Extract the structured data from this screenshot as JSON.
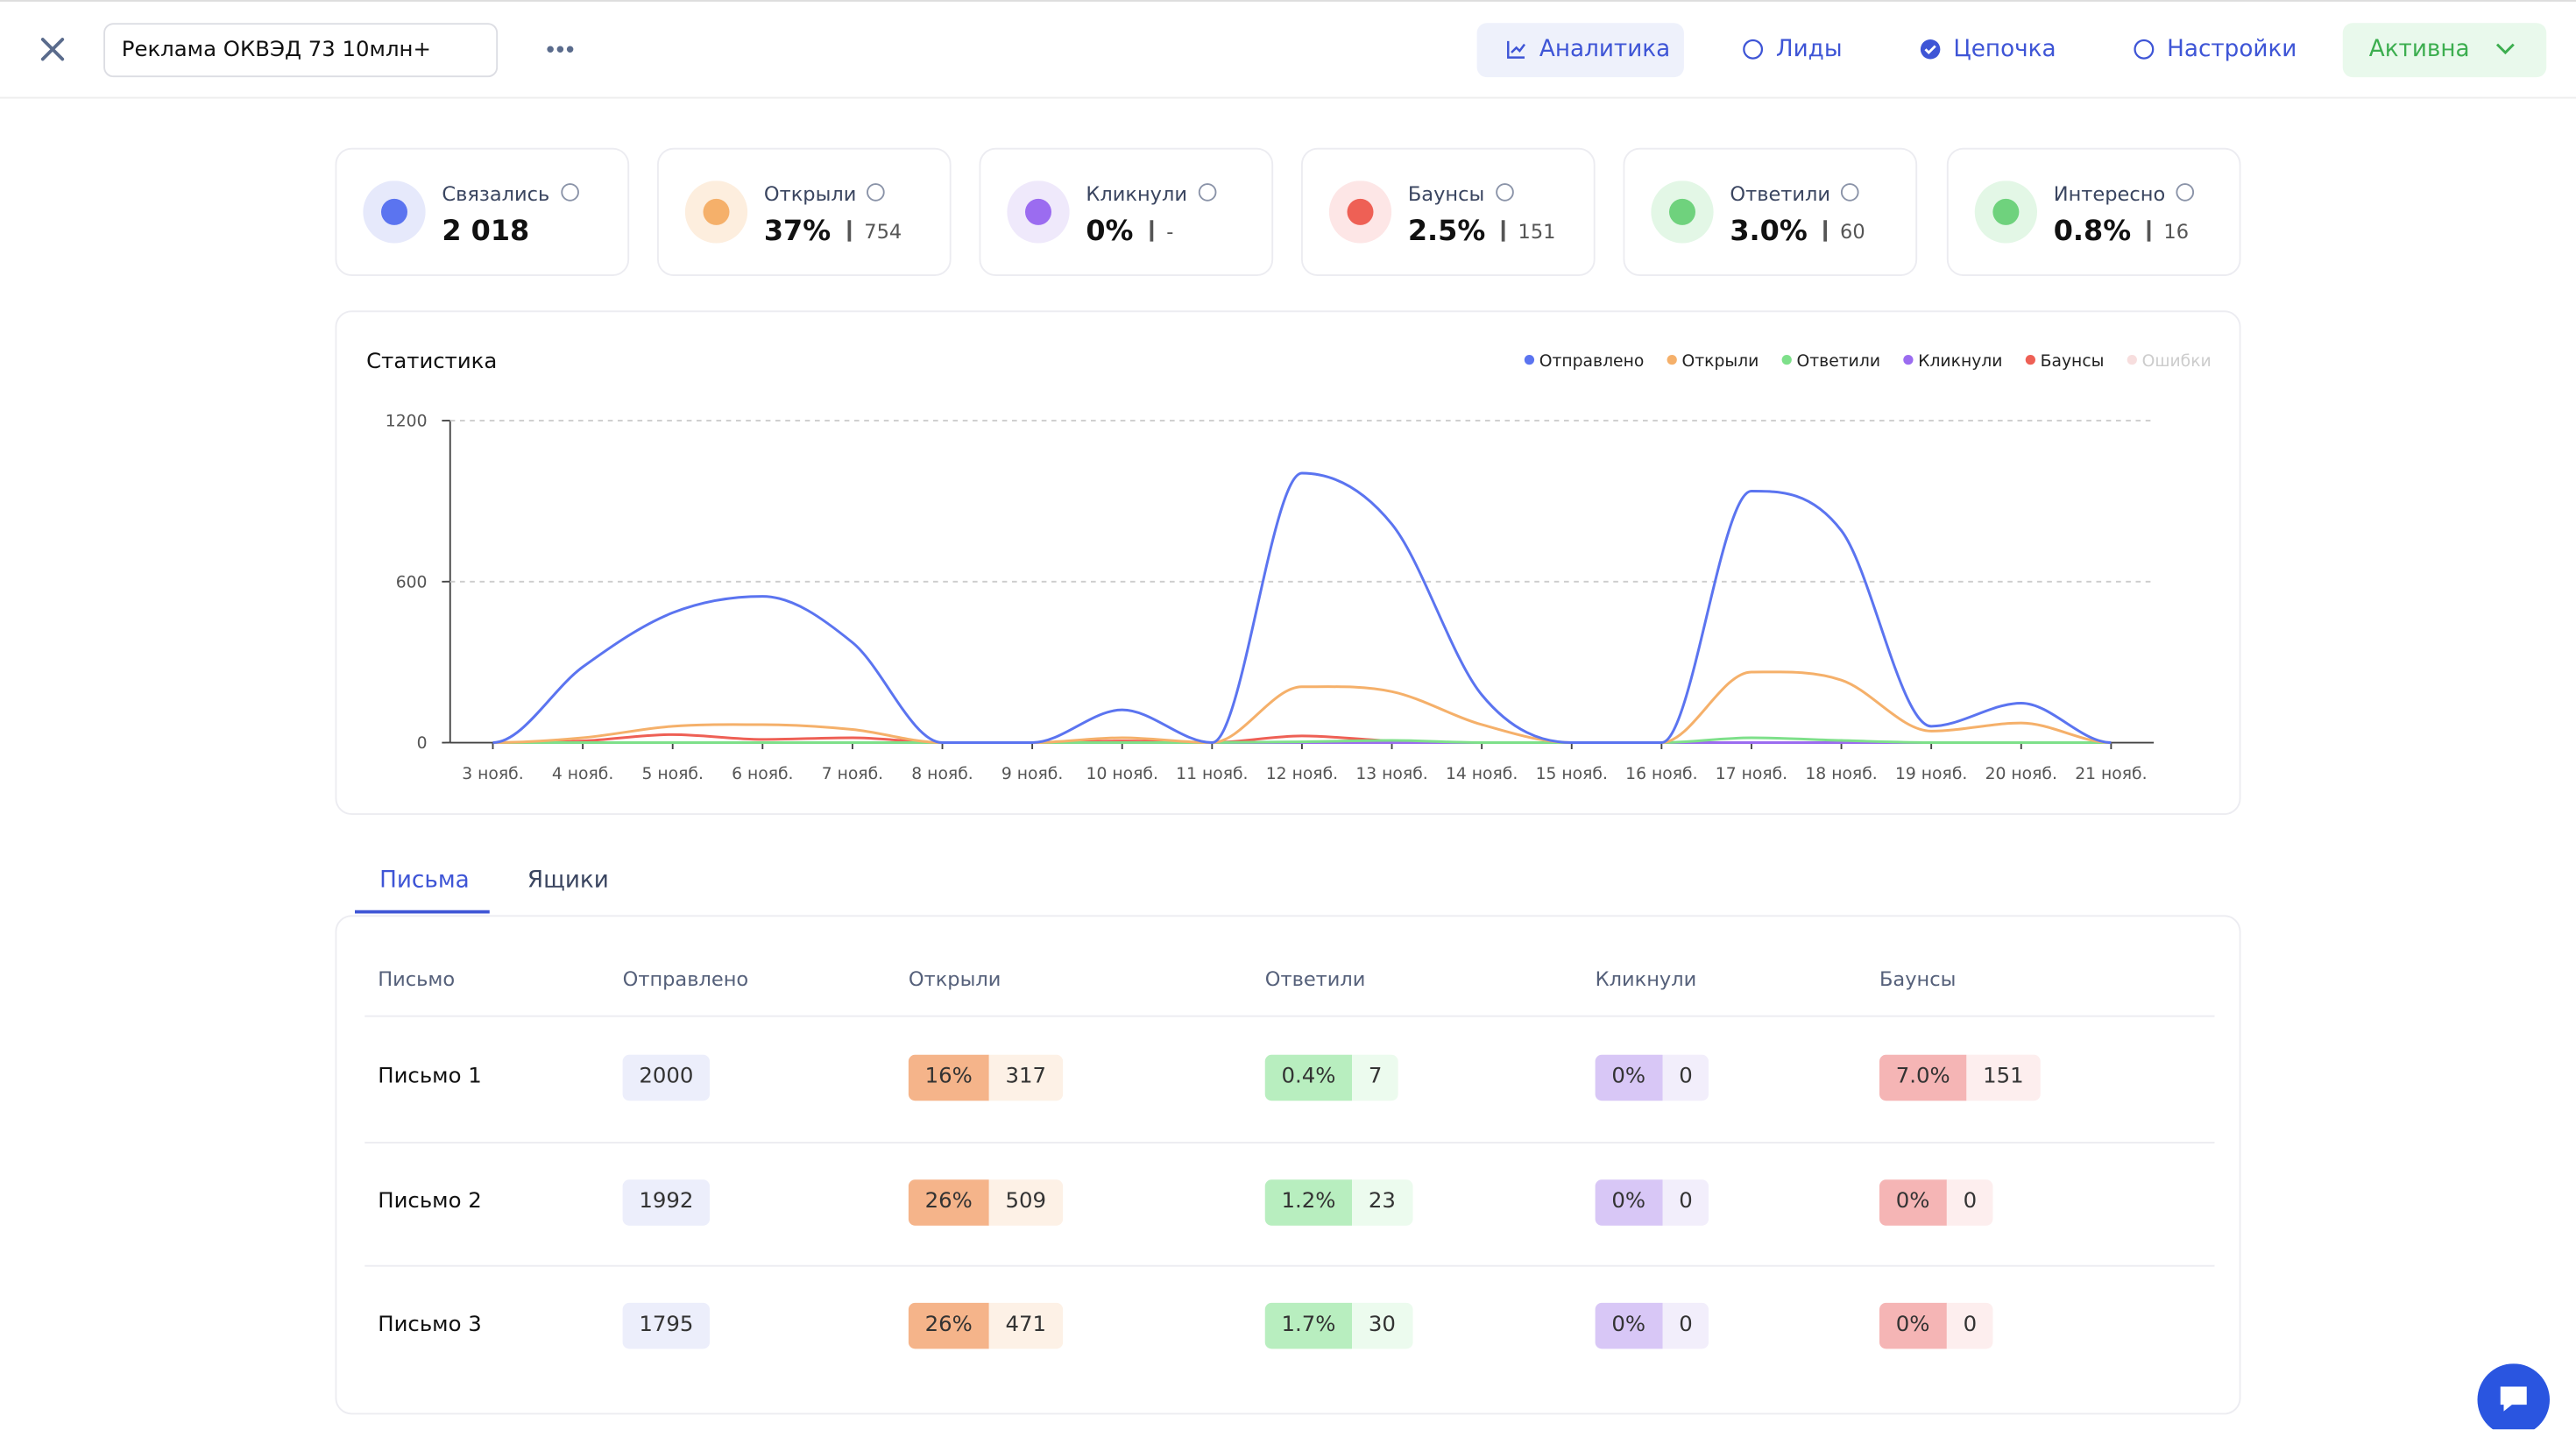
{
  "header": {
    "campaign_name": "Реклама ОКВЭД 73 10млн+",
    "nav": [
      "Аналитика",
      "Лиды",
      "Цепочка",
      "Настройки"
    ],
    "status": "Активна"
  },
  "kpis": [
    {
      "label": "Связались",
      "value": "2 018"
    },
    {
      "label": "Открыли",
      "value": "37%",
      "count": "754"
    },
    {
      "label": "Кликнули",
      "value": "0%",
      "count": "-"
    },
    {
      "label": "Баунсы",
      "value": "2.5%",
      "count": "151"
    },
    {
      "label": "Ответили",
      "value": "3.0%",
      "count": "60"
    },
    {
      "label": "Интересно",
      "value": "0.8%",
      "count": "16"
    }
  ],
  "chart_data": {
    "type": "line",
    "title": "Статистика",
    "categories": [
      "3 нояб.",
      "4 нояб.",
      "5 нояб.",
      "6 нояб.",
      "7 нояб.",
      "8 нояб.",
      "9 нояб.",
      "10 нояб.",
      "11 нояб.",
      "12 нояб.",
      "13 нояб.",
      "14 нояб.",
      "15 нояб.",
      "16 нояб.",
      "17 нояб.",
      "18 нояб.",
      "19 нояб.",
      "20 нояб.",
      "21 нояб."
    ],
    "series": [
      {
        "name": "Отправлено",
        "color": "#5b74f0",
        "values": [
          0,
          282,
          484,
          545,
          373,
          0,
          0,
          122,
          0,
          1004,
          814,
          178,
          0,
          0,
          937,
          790,
          61,
          147,
          0
        ]
      },
      {
        "name": "Открыли",
        "color": "#f5b06a",
        "values": [
          0,
          18,
          61,
          67,
          49,
          0,
          0,
          18,
          0,
          208,
          190,
          67,
          0,
          0,
          263,
          233,
          43,
          73,
          0
        ]
      },
      {
        "name": "Ответили",
        "color": "#7ee08a",
        "values": [
          0,
          0,
          0,
          0,
          0,
          0,
          0,
          0,
          0,
          3,
          8,
          0,
          0,
          0,
          18,
          8,
          0,
          0,
          0
        ]
      },
      {
        "name": "Кликнули",
        "color": "#9b6cf0",
        "values": [
          0,
          0,
          0,
          0,
          0,
          0,
          0,
          0,
          0,
          0,
          0,
          0,
          0,
          0,
          0,
          0,
          0,
          0,
          0
        ]
      },
      {
        "name": "Баунсы",
        "color": "#ee6055",
        "values": [
          0,
          6,
          30,
          12,
          18,
          0,
          0,
          6,
          0,
          25,
          6,
          0,
          0,
          0,
          0,
          0,
          0,
          0,
          0
        ]
      },
      {
        "name": "Ошибки",
        "color": "#f7dede",
        "values": [
          0,
          0,
          0,
          0,
          0,
          0,
          0,
          0,
          0,
          0,
          0,
          0,
          0,
          0,
          0,
          0,
          0,
          0,
          0
        ]
      }
    ],
    "ylim": [
      0,
      1200
    ],
    "yticks": [
      0,
      600,
      1200
    ],
    "grid": true,
    "legend": "top-right"
  },
  "tabs": [
    "Письма",
    "Ящики"
  ],
  "table": {
    "columns": [
      "Письмо",
      "Отправлено",
      "Открыли",
      "Ответили",
      "Кликнули",
      "Баунсы"
    ],
    "rows": [
      [
        "Письмо 1",
        "2000",
        [
          "16%",
          "317"
        ],
        [
          "0.4%",
          "7"
        ],
        [
          "0%",
          "0"
        ],
        [
          "7.0%",
          "151"
        ]
      ],
      [
        "Письмо 2",
        "1992",
        [
          "26%",
          "509"
        ],
        [
          "1.2%",
          "23"
        ],
        [
          "0%",
          "0"
        ],
        [
          "0%",
          "0"
        ]
      ],
      [
        "Письмо 3",
        "1795",
        [
          "26%",
          "471"
        ],
        [
          "1.7%",
          "30"
        ],
        [
          "0%",
          "0"
        ],
        [
          "0%",
          "0"
        ]
      ]
    ]
  }
}
